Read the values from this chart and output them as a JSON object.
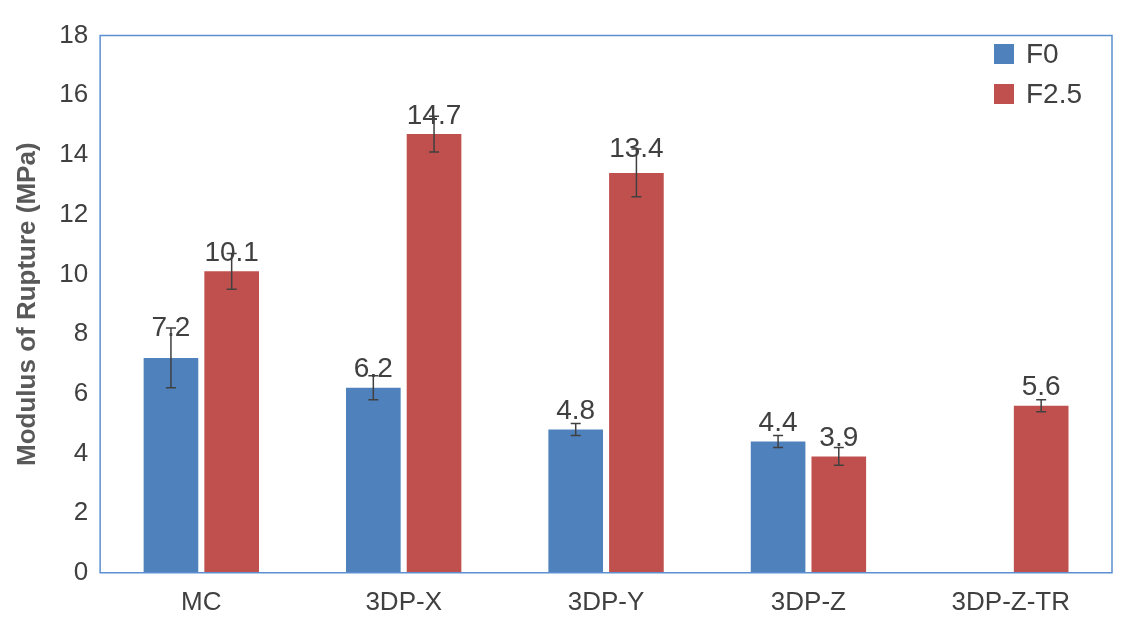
{
  "chart_data": {
    "type": "bar",
    "ylabel": "Modulus of Rupture (MPa)",
    "categories": [
      "MC",
      "3DP-X",
      "3DP-Y",
      "3DP-Z",
      "3DP-Z-TR"
    ],
    "series": [
      {
        "name": "F0",
        "color": "#4f81bd",
        "values": [
          7.2,
          6.2,
          4.8,
          4.4,
          null
        ],
        "errors": [
          1.0,
          0.4,
          0.2,
          0.2,
          null
        ]
      },
      {
        "name": "F2.5",
        "color": "#c0504d",
        "values": [
          10.1,
          14.7,
          13.4,
          3.9,
          5.6
        ],
        "errors": [
          0.6,
          0.6,
          0.8,
          0.3,
          0.2
        ]
      }
    ],
    "ylim": [
      0,
      18
    ],
    "yticks": [
      0,
      2,
      4,
      6,
      8,
      10,
      12,
      14,
      16,
      18
    ],
    "grid": false,
    "legend": "top right",
    "data_labels": true
  }
}
